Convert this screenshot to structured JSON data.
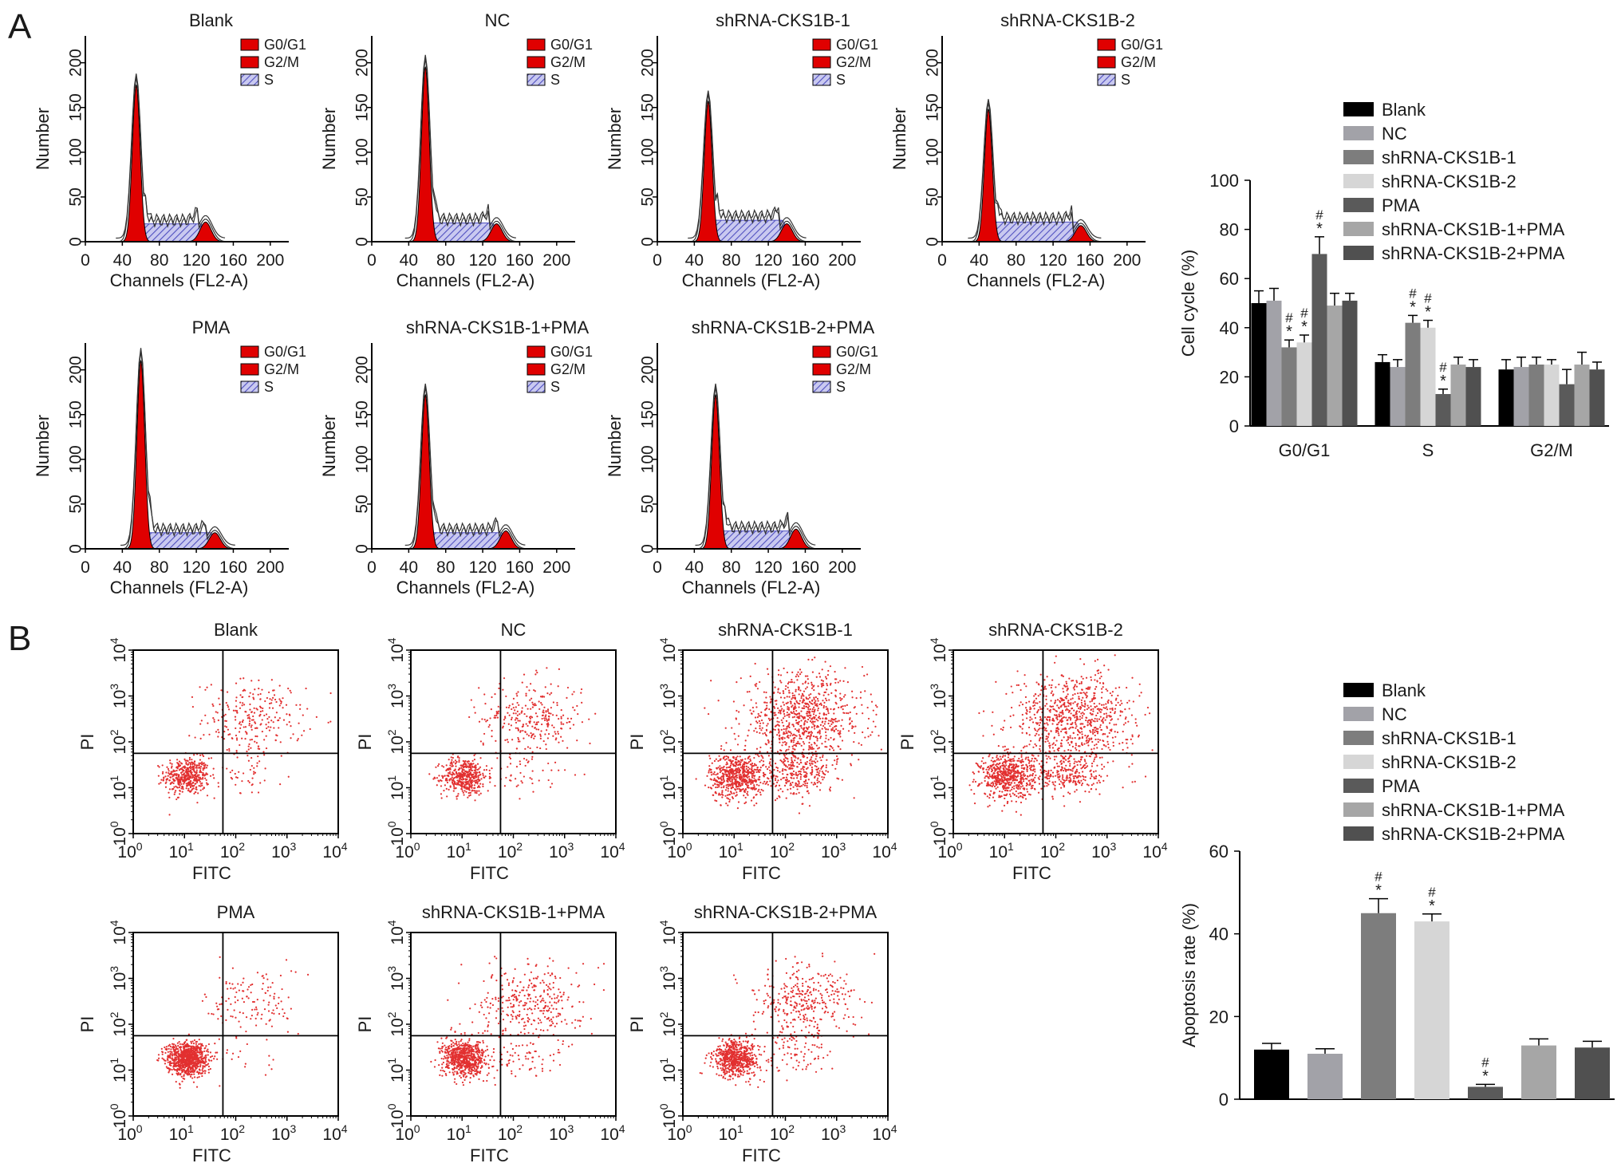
{
  "panel_labels": [
    "A",
    "B"
  ],
  "colors": {
    "g0g1": "#e00000",
    "g2m": "#e00000",
    "s_fill": "#c9c9f0",
    "s_hatch": "#5050c0",
    "dot": "#e23030",
    "bar_shades": [
      "#000000",
      "#a2a2a8",
      "#7d7d7d",
      "#d6d6d6",
      "#5a5a5a",
      "#a6a6a6",
      "#505050"
    ]
  },
  "histograms": {
    "xlabel": "Channels (FL2-A)",
    "ylabel": "Number",
    "xticks": [
      "0",
      "40",
      "80",
      "120",
      "160",
      "200"
    ],
    "yticks": [
      "0",
      "50",
      "100",
      "150",
      "200"
    ],
    "xlim": [
      0,
      220
    ],
    "ylim": [
      0,
      230
    ],
    "legend": [
      "G0/G1",
      "G2/M",
      "S"
    ],
    "panels": [
      {
        "title": "Blank",
        "g1_peak": 175,
        "g1_pos": 55,
        "g2_peak": 22,
        "g2_pos": 130,
        "s_level": 20
      },
      {
        "title": "NC",
        "g1_peak": 195,
        "g1_pos": 58,
        "g2_peak": 20,
        "g2_pos": 135,
        "s_level": 21
      },
      {
        "title": "shRNA-CKS1B-1",
        "g1_peak": 157,
        "g1_pos": 55,
        "g2_peak": 20,
        "g2_pos": 140,
        "s_level": 24
      },
      {
        "title": "shRNA-CKS1B-2",
        "g1_peak": 148,
        "g1_pos": 50,
        "g2_peak": 18,
        "g2_pos": 150,
        "s_level": 22
      },
      {
        "title": "PMA",
        "g1_peak": 210,
        "g1_pos": 60,
        "g2_peak": 18,
        "g2_pos": 140,
        "s_level": 18
      },
      {
        "title": "shRNA-CKS1B-1+PMA",
        "g1_peak": 172,
        "g1_pos": 58,
        "g2_peak": 20,
        "g2_pos": 145,
        "s_level": 18
      },
      {
        "title": "shRNA-CKS1B-2+PMA",
        "g1_peak": 172,
        "g1_pos": 63,
        "g2_peak": 22,
        "g2_pos": 150,
        "s_level": 20
      }
    ]
  },
  "scatter": {
    "xlabel": "FITC",
    "ylabel": "PI",
    "tick_base": "10",
    "tick_exp": [
      "0",
      "1",
      "2",
      "3",
      "4"
    ],
    "gate_x": 1.75,
    "gate_y": 1.75,
    "panels": [
      {
        "title": "Blank",
        "live": 450,
        "late": 260,
        "early": 40,
        "spread": 1.0
      },
      {
        "title": "NC",
        "live": 450,
        "late": 300,
        "early": 40,
        "spread": 1.0
      },
      {
        "title": "shRNA-CKS1B-1",
        "live": 600,
        "late": 850,
        "early": 280,
        "spread": 1.2
      },
      {
        "title": "shRNA-CKS1B-2",
        "live": 600,
        "late": 820,
        "early": 260,
        "spread": 1.2
      },
      {
        "title": "PMA",
        "live": 900,
        "late": 130,
        "early": 20,
        "spread": 0.9
      },
      {
        "title": "shRNA-CKS1B-1+PMA",
        "live": 700,
        "late": 330,
        "early": 70,
        "spread": 1.0
      },
      {
        "title": "shRNA-CKS1B-2+PMA",
        "live": 650,
        "late": 350,
        "early": 70,
        "spread": 1.0
      }
    ]
  },
  "chart_data": [
    {
      "type": "bar",
      "ylabel": "Cell cycle (%)",
      "ylim": [
        0,
        100
      ],
      "yticks": [
        "0",
        "20",
        "40",
        "60",
        "80",
        "100"
      ],
      "categories": [
        "G0/G1",
        "S",
        "G2/M"
      ],
      "series": [
        {
          "name": "Blank",
          "values": [
            50,
            26,
            23
          ],
          "errors": [
            5,
            3,
            4
          ],
          "marks": [
            "",
            "",
            ""
          ]
        },
        {
          "name": "NC",
          "values": [
            51,
            24,
            24
          ],
          "errors": [
            5,
            3,
            4
          ],
          "marks": [
            "",
            "",
            ""
          ]
        },
        {
          "name": "shRNA-CKS1B-1",
          "values": [
            32,
            42,
            25
          ],
          "errors": [
            3,
            3,
            3
          ],
          "marks": [
            "*#",
            "*#",
            ""
          ]
        },
        {
          "name": "shRNA-CKS1B-2",
          "values": [
            34,
            40,
            25
          ],
          "errors": [
            3,
            3,
            2
          ],
          "marks": [
            "*#",
            "*#",
            ""
          ]
        },
        {
          "name": "PMA",
          "values": [
            70,
            13,
            17
          ],
          "errors": [
            7,
            2,
            6
          ],
          "marks": [
            "*#",
            "*#",
            ""
          ]
        },
        {
          "name": "shRNA-CKS1B-1+PMA",
          "values": [
            49,
            25,
            25
          ],
          "errors": [
            5,
            3,
            5
          ],
          "marks": [
            "",
            "",
            ""
          ]
        },
        {
          "name": "shRNA-CKS1B-2+PMA",
          "values": [
            51,
            24,
            23
          ],
          "errors": [
            3,
            3,
            3
          ],
          "marks": [
            "",
            "",
            ""
          ]
        }
      ],
      "sig_star": "*",
      "sig_hash": "#",
      "legend": "top"
    },
    {
      "type": "bar",
      "ylabel": "Apoptosis rate (%)",
      "ylim": [
        0,
        60
      ],
      "yticks": [
        "0",
        "20",
        "40",
        "60"
      ],
      "categories": [
        "Blank",
        "NC",
        "shRNA-CKS1B-1",
        "shRNA-CKS1B-2",
        "PMA",
        "shRNA-CKS1B-1+PMA",
        "shRNA-CKS1B-2+PMA"
      ],
      "values": [
        12,
        11,
        45,
        43,
        3,
        13,
        12.5
      ],
      "errors": [
        1.5,
        1.2,
        3.5,
        1.8,
        0.6,
        1.6,
        1.5
      ],
      "marks": [
        "",
        "",
        "*#",
        "*#",
        "*#",
        "",
        ""
      ],
      "legend": "top"
    }
  ]
}
